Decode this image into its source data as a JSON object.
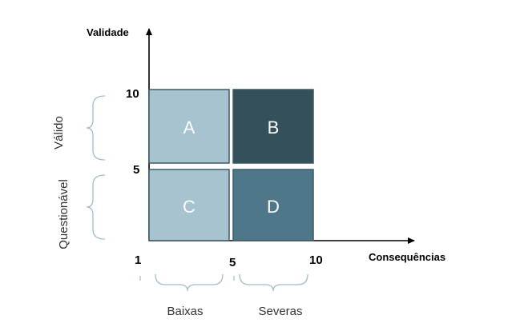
{
  "axes": {
    "y_title": "Validade",
    "x_title": "Consequências",
    "y_ticks": [
      "10",
      "5"
    ],
    "x_ticks": [
      "1",
      "5",
      "10"
    ]
  },
  "y_groups": [
    "Válido",
    "Questionável"
  ],
  "x_groups": [
    "Baixas",
    "Severas"
  ],
  "quadrants": [
    {
      "label": "A",
      "color": "#a6c3cf"
    },
    {
      "label": "B",
      "color": "#34505b"
    },
    {
      "label": "C",
      "color": "#a6c3cf"
    },
    {
      "label": "D",
      "color": "#4e7889"
    }
  ],
  "colors": {
    "axis": "#000000",
    "brace": "#9fbccb",
    "cell_border": "#3d5a66"
  }
}
